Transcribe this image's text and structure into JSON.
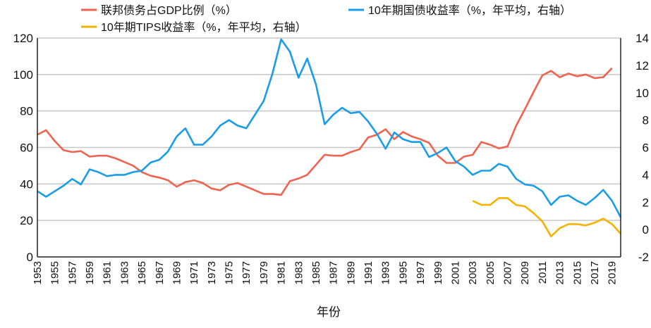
{
  "chart_data": {
    "type": "line",
    "xlabel": "年份",
    "xlim": [
      1953,
      2020
    ],
    "x_ticks": [
      1953,
      1955,
      1957,
      1959,
      1961,
      1963,
      1965,
      1967,
      1969,
      1971,
      1973,
      1975,
      1977,
      1979,
      1981,
      1983,
      1985,
      1987,
      1989,
      1991,
      1993,
      1995,
      1997,
      1999,
      2001,
      2003,
      2005,
      2007,
      2009,
      2011,
      2013,
      2015,
      2017,
      2019
    ],
    "y_left": {
      "lim": [
        0,
        120
      ],
      "ticks": [
        0,
        20,
        40,
        60,
        80,
        100,
        120
      ]
    },
    "y_right": {
      "lim": [
        -2,
        14
      ],
      "ticks": [
        -2,
        0,
        2,
        4,
        6,
        8,
        10,
        12,
        14
      ]
    },
    "grid": true,
    "legend_position": "top",
    "series": [
      {
        "name": "联邦债务占GDP比例（%）",
        "axis": "left",
        "color": "#EF6351",
        "start_year": 1953,
        "values": [
          67,
          69.5,
          63.5,
          58.5,
          57.5,
          58,
          55,
          55.5,
          55.5,
          54,
          52,
          50,
          46.5,
          44.5,
          43.5,
          42,
          38.5,
          41,
          42,
          40.5,
          37.5,
          36.5,
          39.5,
          40.5,
          38.5,
          36.5,
          34.5,
          34.5,
          34,
          41.5,
          43,
          45,
          50.5,
          56,
          55.5,
          55.5,
          57.5,
          59,
          65.5,
          67,
          70,
          64.5,
          68.5,
          66,
          64.5,
          62.5,
          55.5,
          51.5,
          51.5,
          55,
          56,
          63,
          61.5,
          59.5,
          60.5,
          72,
          81,
          90.5,
          99.5,
          102,
          98.5,
          100.5,
          99,
          100,
          98,
          98.5,
          103.5
        ]
      },
      {
        "name": "10年期国债收益率（%，年平均，右轴）",
        "axis": "right",
        "color": "#1A9DE8",
        "start_year": 1953,
        "values": [
          2.8,
          2.4,
          2.8,
          3.2,
          3.7,
          3.3,
          4.4,
          4.2,
          3.9,
          4.0,
          4.0,
          4.2,
          4.3,
          4.9,
          5.1,
          5.7,
          6.8,
          7.4,
          6.2,
          6.2,
          6.8,
          7.6,
          8.0,
          7.6,
          7.4,
          8.4,
          9.4,
          11.4,
          13.9,
          13.0,
          11.1,
          12.5,
          10.6,
          7.7,
          8.4,
          8.9,
          8.5,
          8.6,
          7.9,
          7.0,
          5.9,
          7.1,
          6.6,
          6.4,
          6.4,
          5.3,
          5.6,
          6.0,
          5.0,
          4.6,
          4.0,
          4.3,
          4.3,
          4.8,
          4.6,
          3.7,
          3.3,
          3.2,
          2.8,
          1.8,
          2.4,
          2.5,
          2.1,
          1.8,
          2.3,
          2.9,
          2.1,
          0.9
        ]
      },
      {
        "name": "10年期TIPS收益率（%，年平均，右轴）",
        "axis": "right",
        "color": "#F2B400",
        "start_year": 2003,
        "values": [
          2.1,
          1.8,
          1.8,
          2.3,
          2.3,
          1.8,
          1.7,
          1.2,
          0.6,
          -0.5,
          0.1,
          0.4,
          0.4,
          0.3,
          0.5,
          0.8,
          0.4,
          -0.3
        ]
      }
    ]
  }
}
